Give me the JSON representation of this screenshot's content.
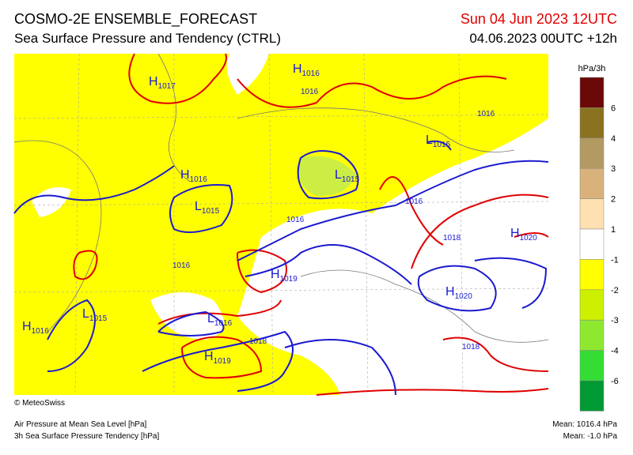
{
  "header": {
    "title": "COSMO-2E ENSEMBLE_FORECAST",
    "subtitle": "Sea Surface Pressure and Tendency (CTRL)",
    "valid": "Sun 04 Jun 2023 12UTC",
    "run": "04.06.2023 00UTC +12h"
  },
  "legend": {
    "unit": "hPa/3h",
    "labels": [
      "6",
      "4",
      "3",
      "2",
      "1",
      "-1",
      "-2",
      "-3",
      "-4",
      "-6"
    ]
  },
  "centers": [
    {
      "letter": "H",
      "value": "1017"
    },
    {
      "letter": "H",
      "value": "1016"
    },
    {
      "letter": "H",
      "value": "1016"
    },
    {
      "letter": "L",
      "value": "1015"
    },
    {
      "letter": "L",
      "value": "1015"
    },
    {
      "letter": "L",
      "value": "1015"
    },
    {
      "letter": "H",
      "value": "1019"
    },
    {
      "letter": "L",
      "value": "1016"
    },
    {
      "letter": "H",
      "value": "1019"
    },
    {
      "letter": "H",
      "value": "1016"
    },
    {
      "letter": "L",
      "value": "1015"
    },
    {
      "letter": "H",
      "value": "1020"
    },
    {
      "letter": "H",
      "value": "1020"
    }
  ],
  "contour_labels": [
    "1016",
    "1016",
    "1016",
    "1016",
    "1016",
    "1018",
    "1018",
    "1018"
  ],
  "footer": {
    "copyright": "© MeteoSwiss",
    "line1": "Air Pressure at Mean Sea Level [hPa]",
    "line2": "3h Sea Surface Pressure Tendency [hPa]",
    "mean1": "Mean: 1016.4 hPa",
    "mean2": "Mean:  -1.0 hPa"
  }
}
